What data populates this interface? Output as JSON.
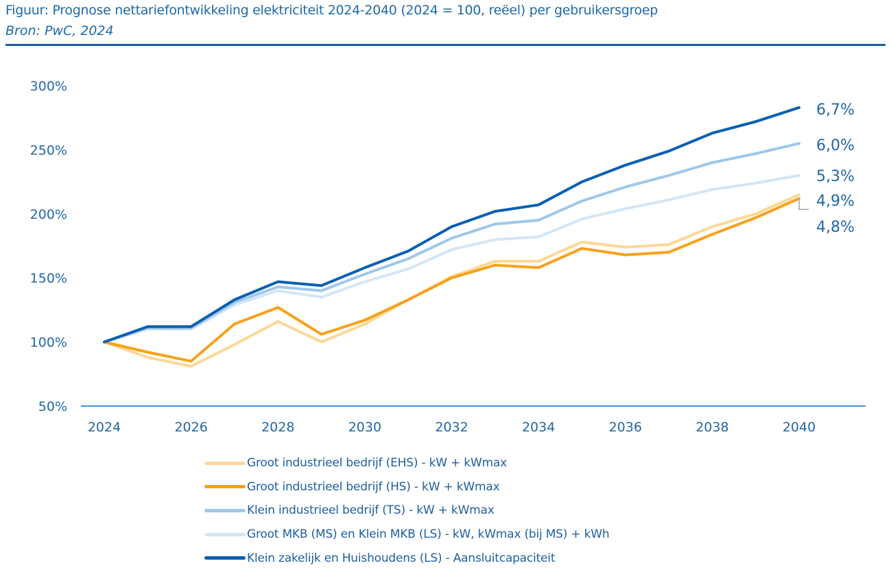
{
  "header": {
    "title": "Figuur: Prognose nettariefontwikkeling elektriciteit 2024-2040 (2024 = 100, reëel) per gebruikersgroep",
    "source": "Bron: PwC, 2024"
  },
  "chart_data": {
    "type": "line",
    "title": "Prognose nettariefontwikkeling elektriciteit 2024-2040 (2024 = 100, reëel) per gebruikersgroep",
    "xlabel": "",
    "ylabel": "",
    "x": [
      2024,
      2025,
      2026,
      2027,
      2028,
      2029,
      2030,
      2031,
      2032,
      2033,
      2034,
      2035,
      2036,
      2037,
      2038,
      2039,
      2040
    ],
    "x_tick_labels": [
      "2024",
      "2026",
      "2028",
      "2030",
      "2032",
      "2034",
      "2036",
      "2038",
      "2040"
    ],
    "x_tick_values": [
      2024,
      2026,
      2028,
      2030,
      2032,
      2034,
      2036,
      2038,
      2040
    ],
    "y_tick_labels": [
      "50%",
      "100%",
      "150%",
      "200%",
      "250%",
      "300%"
    ],
    "y_tick_values": [
      50,
      100,
      150,
      200,
      250,
      300
    ],
    "ylim": [
      50,
      300
    ],
    "xlim": [
      2023.5,
      2041.5
    ],
    "grid": false,
    "legend_position": "bottom",
    "series": [
      {
        "name": "Groot industrieel bedrijf (EHS) - kW + kWmax",
        "color": "#fdd896",
        "values": [
          100,
          88,
          81,
          98,
          116,
          100,
          114,
          133,
          151,
          163,
          163,
          178,
          174,
          176,
          190,
          200,
          215
        ],
        "end_label": "4,9%"
      },
      {
        "name": "Groot industrieel bedrijf (HS) - kW + kWmax",
        "color": "#f9a11b",
        "values": [
          100,
          92,
          85,
          114,
          127,
          106,
          117,
          133,
          150,
          160,
          158,
          173,
          168,
          170,
          184,
          197,
          212
        ],
        "end_label": "4,8%"
      },
      {
        "name": "Klein industrieel bedrijf (TS) - kW + kWmax",
        "color": "#9fc8ea",
        "values": [
          100,
          111,
          111,
          131,
          143,
          140,
          153,
          165,
          181,
          192,
          195,
          210,
          221,
          230,
          240,
          247,
          255
        ],
        "end_label": "6,0%"
      },
      {
        "name": "Groot MKB (MS) en Klein MKB (LS) - kW, kWmax (bij MS) + kWh",
        "color": "#d3e6f6",
        "values": [
          100,
          110,
          110,
          129,
          140,
          135,
          147,
          157,
          172,
          180,
          182,
          196,
          204,
          211,
          219,
          224,
          230
        ],
        "end_label": "5,3%"
      },
      {
        "name": "Klein zakelijk en Huishoudens (LS) - Aansluitcapaciteit",
        "color": "#0a5fb4",
        "values": [
          100,
          112,
          112,
          133,
          147,
          144,
          158,
          171,
          190,
          202,
          207,
          225,
          238,
          249,
          263,
          272,
          283
        ],
        "end_label": "6,7%"
      }
    ]
  }
}
